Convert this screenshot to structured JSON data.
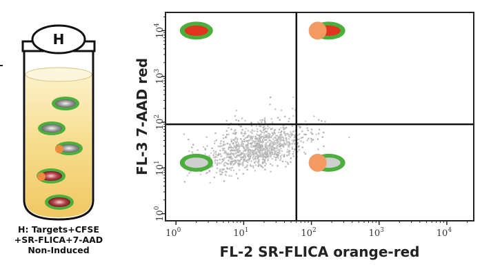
{
  "tube": {
    "label": "H",
    "caption_lines": [
      "H: Targets+CFSE",
      "+SR-FLICA+7-AAD",
      "Non-Induced"
    ]
  },
  "colors": {
    "cfse_green": "#4caf3d",
    "red_dye": "#e0341e",
    "orange_flica": "#f39a63",
    "gray_cell": "#cfcfcf",
    "tube_fill": "#f4d67a"
  },
  "chart_data": {
    "type": "scatter",
    "xlabel": "FL-2 SR-FLICA orange-red",
    "ylabel": "FL-3 7-AAD red",
    "x_scale": "log",
    "y_scale": "log",
    "xlim": [
      0.7,
      25000
    ],
    "ylim": [
      0.7,
      25000
    ],
    "x_ticks": [
      {
        "base": "10",
        "exp": "0"
      },
      {
        "base": "10",
        "exp": "1"
      },
      {
        "base": "10",
        "exp": "2"
      },
      {
        "base": "10",
        "exp": "3"
      },
      {
        "base": "10",
        "exp": "4"
      }
    ],
    "y_ticks": [
      {
        "base": "10",
        "exp": "0"
      },
      {
        "base": "10",
        "exp": "1"
      },
      {
        "base": "10",
        "exp": "2"
      },
      {
        "base": "10",
        "exp": "3"
      },
      {
        "base": "10",
        "exp": "4"
      }
    ],
    "quadrant_gates": {
      "x": 60,
      "y": 90
    },
    "population": {
      "center_x": 15,
      "center_y": 25,
      "description": "dense gray event cloud, lower-left quadrant"
    },
    "quadrant_icons": [
      {
        "quadrant": "upper-left",
        "cell": "green ring, red core",
        "x": 2,
        "y": 10000
      },
      {
        "quadrant": "upper-right",
        "cell": "green ring, red core, orange dot",
        "x": 180,
        "y": 10000
      },
      {
        "quadrant": "lower-left",
        "cell": "green ring, gray core",
        "x": 2,
        "y": 13
      },
      {
        "quadrant": "lower-right",
        "cell": "green ring, gray core, orange dot",
        "x": 180,
        "y": 13
      }
    ]
  }
}
